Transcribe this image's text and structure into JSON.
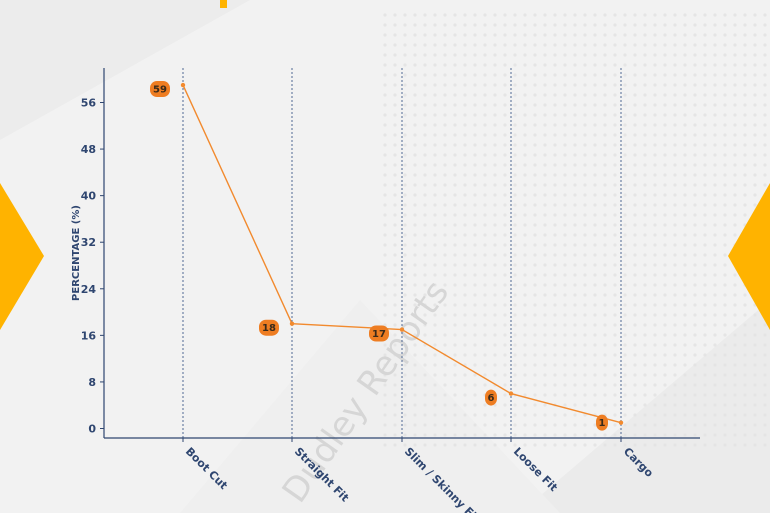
{
  "colors": {
    "accent": "#ffb300",
    "line": "#f28a2e",
    "label_bubble": "#ee7d22",
    "axis": "#2f4670",
    "gridline": "#3f5a8a"
  },
  "watermark": "Dudley Reports",
  "chart_data": {
    "type": "line",
    "title": "",
    "xlabel": "",
    "ylabel": "PERCENTAGE (%)",
    "categories": [
      "Boot Cut",
      "Straight Fit",
      "Slim / Skinny Fit",
      "Loose Fit",
      "Cargo"
    ],
    "values": [
      59,
      18,
      17,
      6,
      1
    ],
    "data_labels": [
      "59",
      "18",
      "17",
      "6",
      "1"
    ],
    "ylim": [
      -2,
      62
    ],
    "yticks": [
      0,
      8,
      16,
      24,
      32,
      40,
      48,
      56
    ],
    "ytick_labels": [
      "0",
      "8",
      "16",
      "24",
      "32",
      "40",
      "48",
      "56"
    ],
    "vertical_gridlines": "dotted at each category",
    "legend": "none"
  }
}
